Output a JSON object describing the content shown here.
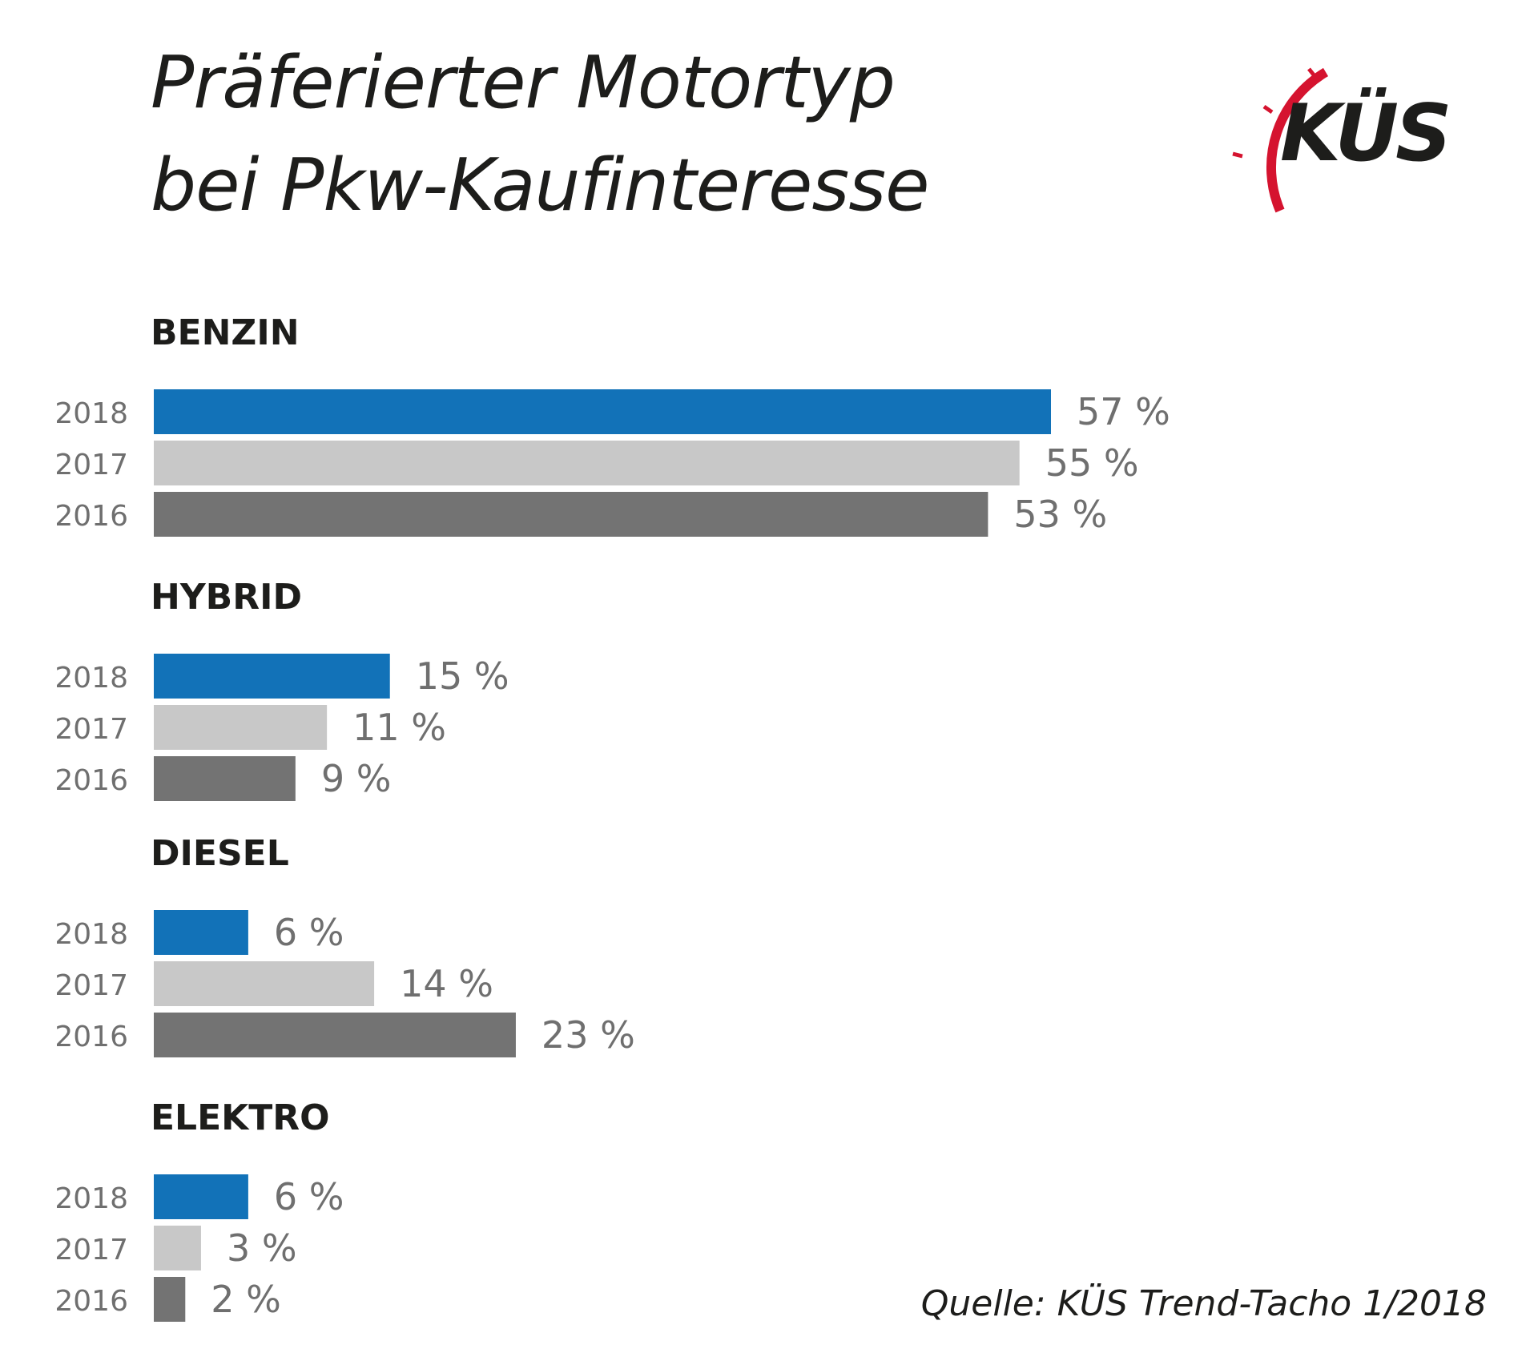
{
  "title": {
    "line1": "Präferierter Motortyp",
    "line2": "bei Pkw-Kaufinteresse"
  },
  "logo": {
    "text": "KÜS",
    "icon": "speedometer-arc",
    "arc_color": "#d5132f",
    "text_color": "#1d1d1b"
  },
  "source": "Quelle: KÜS Trend-Tacho 1/2018",
  "chart_data": {
    "type": "bar",
    "orientation": "horizontal",
    "unit": "%",
    "xlim": [
      0,
      57
    ],
    "grid": false,
    "series_colors": {
      "2018": "#1272b8",
      "2017": "#c8c8c8",
      "2016": "#737373"
    },
    "groups": [
      {
        "name": "BENZIN",
        "bars": [
          {
            "year": "2018",
            "value": 57,
            "label": "57 %"
          },
          {
            "year": "2017",
            "value": 55,
            "label": "55 %"
          },
          {
            "year": "2016",
            "value": 53,
            "label": "53 %"
          }
        ]
      },
      {
        "name": "HYBRID",
        "bars": [
          {
            "year": "2018",
            "value": 15,
            "label": "15 %"
          },
          {
            "year": "2017",
            "value": 11,
            "label": "11 %"
          },
          {
            "year": "2016",
            "value": 9,
            "label": "9 %"
          }
        ]
      },
      {
        "name": "DIESEL",
        "bars": [
          {
            "year": "2018",
            "value": 6,
            "label": "6 %"
          },
          {
            "year": "2017",
            "value": 14,
            "label": "14 %"
          },
          {
            "year": "2016",
            "value": 23,
            "label": "23 %"
          }
        ]
      },
      {
        "name": "ELEKTRO",
        "bars": [
          {
            "year": "2018",
            "value": 6,
            "label": "6 %"
          },
          {
            "year": "2017",
            "value": 3,
            "label": "3 %"
          },
          {
            "year": "2016",
            "value": 2,
            "label": "2 %"
          }
        ]
      }
    ]
  }
}
